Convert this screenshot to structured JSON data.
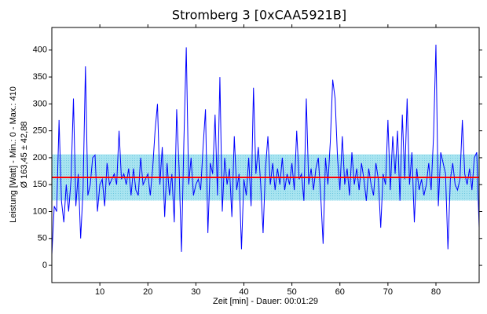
{
  "chart_data": {
    "type": "line",
    "title": "Stromberg 3 [0xCAA5921B]",
    "x_label": "Zeit [min] - Dauer: 00:01:29",
    "y_label": "Leistung [Watt] - Min.: 0 - Max.: 410",
    "y_label_2": "Ø 163,45 ± 42,88",
    "mean": 163.45,
    "deviation": 42.88,
    "mean_color": "#ff0000",
    "band_color": "#a8e4f0",
    "xlim": [
      0,
      89
    ],
    "ylim": [
      -32,
      442
    ],
    "xticks": [
      10,
      20,
      30,
      40,
      50,
      60,
      70,
      80
    ],
    "yticks": [
      0,
      50,
      100,
      150,
      200,
      250,
      300,
      350,
      400
    ],
    "x": [
      0,
      0.5,
      1,
      1.5,
      2,
      2.5,
      3,
      3.5,
      4,
      4.5,
      5,
      5.5,
      6,
      6.5,
      7,
      7.5,
      8,
      8.5,
      9,
      9.5,
      10,
      10.5,
      11,
      11.5,
      12,
      12.5,
      13,
      13.5,
      14,
      14.5,
      15,
      15.5,
      16,
      16.5,
      17,
      17.5,
      18,
      18.5,
      19,
      19.5,
      20,
      20.5,
      21,
      21.5,
      22,
      22.5,
      23,
      23.5,
      24,
      24.5,
      25,
      25.5,
      26,
      26.5,
      27,
      27.5,
      28,
      28.5,
      29,
      29.5,
      30,
      30.5,
      31,
      31.5,
      32,
      32.5,
      33,
      33.5,
      34,
      34.5,
      35,
      35.5,
      36,
      36.5,
      37,
      37.5,
      38,
      38.5,
      39,
      39.5,
      40,
      40.5,
      41,
      41.5,
      42,
      42.5,
      43,
      43.5,
      44,
      44.5,
      45,
      45.5,
      46,
      46.5,
      47,
      47.5,
      48,
      48.5,
      49,
      49.5,
      50,
      50.5,
      51,
      51.5,
      52,
      52.5,
      53,
      53.5,
      54,
      54.5,
      55,
      55.5,
      56,
      56.5,
      57,
      57.5,
      58,
      58.5,
      59,
      59.5,
      60,
      60.5,
      61,
      61.5,
      62,
      62.5,
      63,
      63.5,
      64,
      64.5,
      65,
      65.5,
      66,
      66.5,
      67,
      67.5,
      68,
      68.5,
      69,
      69.5,
      70,
      70.5,
      71,
      71.5,
      72,
      72.5,
      73,
      73.5,
      74,
      74.5,
      75,
      75.5,
      76,
      76.5,
      77,
      77.5,
      78,
      78.5,
      79,
      79.5,
      80,
      80.5,
      81,
      81.5,
      82,
      82.5,
      83,
      83.5,
      84,
      84.5,
      85,
      85.5,
      86,
      86.5,
      87,
      87.5,
      88,
      88.5,
      89
    ],
    "series": [
      {
        "color": "#0000ff",
        "values": [
          20,
          110,
          100,
          270,
          120,
          80,
          150,
          100,
          160,
          310,
          110,
          170,
          50,
          140,
          370,
          130,
          150,
          200,
          205,
          100,
          150,
          160,
          110,
          190,
          150,
          160,
          170,
          150,
          250,
          160,
          170,
          150,
          180,
          130,
          180,
          140,
          130,
          200,
          150,
          160,
          170,
          130,
          180,
          250,
          300,
          150,
          220,
          90,
          190,
          130,
          170,
          80,
          290,
          180,
          25,
          230,
          405,
          150,
          200,
          130,
          150,
          160,
          140,
          220,
          290,
          60,
          190,
          170,
          280,
          130,
          350,
          100,
          200,
          150,
          180,
          90,
          240,
          140,
          170,
          30,
          160,
          130,
          200,
          110,
          330,
          170,
          220,
          150,
          60,
          180,
          240,
          150,
          190,
          140,
          180,
          150,
          200,
          140,
          170,
          150,
          190,
          140,
          250,
          160,
          170,
          120,
          310,
          150,
          180,
          140,
          180,
          200,
          130,
          40,
          200,
          150,
          230,
          345,
          310,
          200,
          140,
          240,
          150,
          180,
          130,
          210,
          150,
          180,
          140,
          190,
          160,
          120,
          180,
          150,
          130,
          190,
          160,
          70,
          170,
          150,
          270,
          140,
          240,
          170,
          250,
          120,
          280,
          160,
          310,
          150,
          210,
          80,
          180,
          140,
          160,
          130,
          150,
          190,
          140,
          240,
          410,
          110,
          210,
          190,
          170,
          30,
          160,
          190,
          150,
          140,
          160,
          270,
          170,
          150,
          180,
          140,
          200,
          210,
          70
        ]
      }
    ]
  }
}
